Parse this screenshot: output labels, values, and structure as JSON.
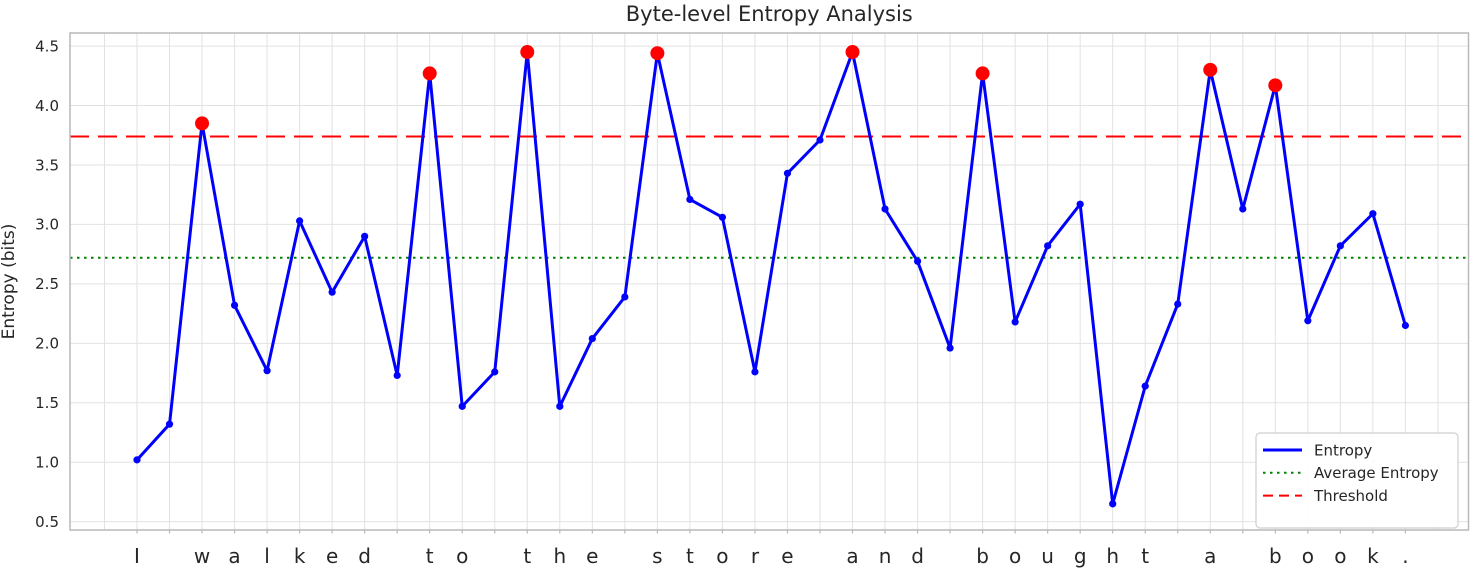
{
  "chart_data": {
    "type": "line",
    "title": "Byte-level Entropy Analysis",
    "xlabel": "",
    "ylabel": "Entropy (bits)",
    "source_text": "I walked to the store and bought a book.",
    "categories": [
      "I",
      " ",
      "w",
      "a",
      "l",
      "k",
      "e",
      "d",
      " ",
      "t",
      "o",
      " ",
      "t",
      "h",
      "e",
      " ",
      "s",
      "t",
      "o",
      "r",
      "e",
      " ",
      "a",
      "n",
      "d",
      " ",
      "b",
      "o",
      "u",
      "g",
      "h",
      "t",
      " ",
      "a",
      " ",
      "b",
      "o",
      "o",
      "k",
      "."
    ],
    "series": [
      {
        "name": "Entropy",
        "style": "solid",
        "color": "#0000ff",
        "values": [
          1.02,
          1.32,
          3.85,
          2.32,
          1.77,
          3.03,
          2.43,
          2.9,
          1.73,
          4.27,
          1.47,
          1.76,
          4.45,
          1.47,
          2.04,
          2.39,
          4.44,
          3.21,
          3.06,
          1.76,
          3.43,
          3.71,
          4.45,
          3.13,
          2.69,
          1.96,
          4.27,
          2.18,
          2.82,
          3.17,
          0.65,
          1.64,
          2.33,
          4.3,
          3.13,
          4.17,
          2.19,
          2.82,
          3.09,
          2.15
        ]
      }
    ],
    "reference_lines": [
      {
        "name": "Average Entropy",
        "value": 2.72,
        "color": "#008000",
        "style": "dotted"
      },
      {
        "name": "Threshold",
        "value": 3.74,
        "color": "#ff0000",
        "style": "dashed"
      }
    ],
    "highlight_points": {
      "indices": [
        2,
        9,
        12,
        16,
        22,
        26,
        33,
        35
      ],
      "color": "#ff0000"
    },
    "yticks": [
      "0.5",
      "1.0",
      "1.5",
      "2.0",
      "2.5",
      "3.0",
      "3.5",
      "4.0",
      "4.5"
    ],
    "ylim": [
      0.43,
      4.61
    ],
    "xlim": [
      -2.06,
      40.94
    ],
    "grid": true,
    "legend": {
      "position": "lower right",
      "entries": [
        {
          "label": "Entropy",
          "color": "#0000ff",
          "style": "solid"
        },
        {
          "label": "Average Entropy",
          "color": "#008000",
          "style": "dotted"
        },
        {
          "label": "Threshold",
          "color": "#ff0000",
          "style": "dashed"
        }
      ]
    }
  },
  "colors": {
    "background": "#ffffff",
    "grid": "#e2e2e2",
    "spine": "#b9b9b9",
    "text": "#262626",
    "series": "#0000ff",
    "highlight": "#ff0000",
    "average": "#008000",
    "threshold": "#ff0000"
  }
}
